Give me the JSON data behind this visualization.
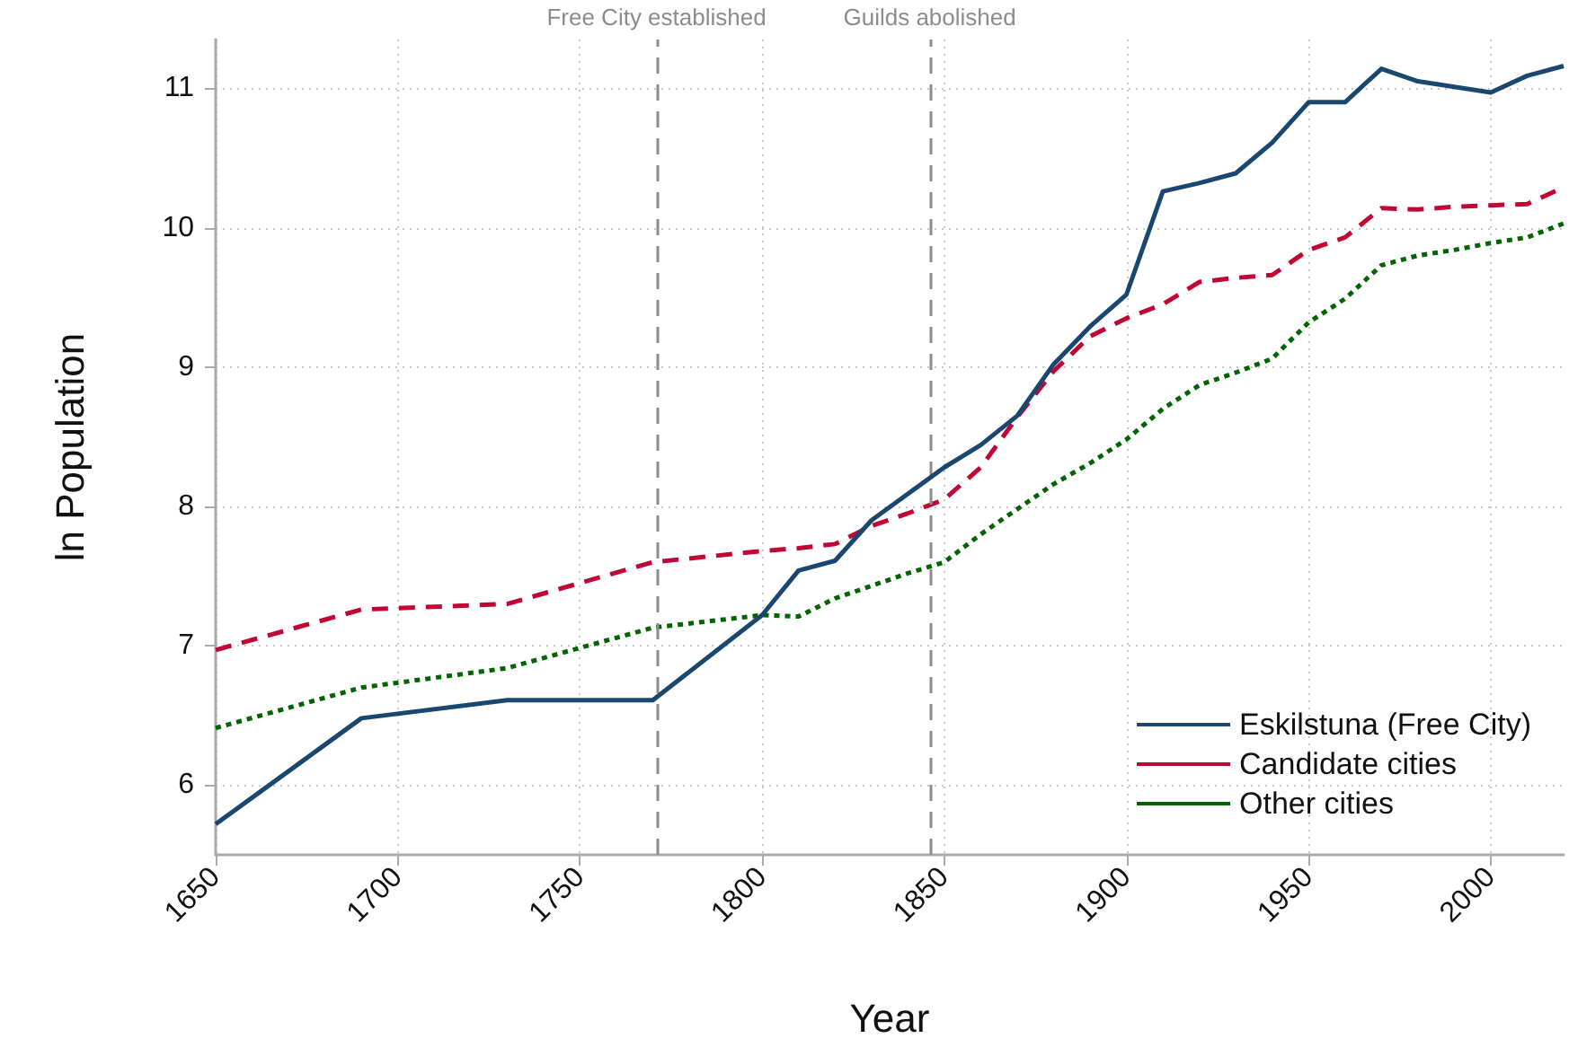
{
  "chart_data": {
    "type": "line",
    "xlabel": "Year",
    "ylabel": "ln Population",
    "xlim": [
      1650,
      2020
    ],
    "xticks": [
      1650,
      1700,
      1750,
      1800,
      1850,
      1900,
      1950,
      2000
    ],
    "ylim": [
      5.5,
      11.35
    ],
    "yticks": [
      6,
      7,
      8,
      9,
      10,
      11
    ],
    "grid": true,
    "legend": "bottom right",
    "x": [
      1650,
      1690,
      1730,
      1770,
      1800,
      1810,
      1820,
      1830,
      1840,
      1850,
      1860,
      1870,
      1880,
      1890,
      1900,
      1910,
      1920,
      1930,
      1940,
      1950,
      1960,
      1970,
      1980,
      1990,
      2000,
      2010,
      2020
    ],
    "series": [
      {
        "name": "Eskilstuna (Free City)",
        "color": "#1a476f",
        "line_style": "solid",
        "values": [
          5.72,
          6.48,
          6.61,
          6.61,
          7.22,
          7.54,
          7.61,
          7.9,
          8.09,
          8.28,
          8.44,
          8.65,
          9.02,
          9.29,
          9.52,
          10.26,
          10.32,
          10.39,
          10.61,
          10.9,
          10.9,
          11.14,
          11.05,
          11.01,
          10.97,
          11.09,
          11.16
        ]
      },
      {
        "name": "Candidate cities",
        "color": "#c10534",
        "line_style": "dashed",
        "values": [
          6.97,
          7.26,
          7.3,
          7.6,
          7.68,
          7.7,
          7.73,
          7.86,
          7.95,
          8.05,
          8.28,
          8.64,
          8.97,
          9.22,
          9.35,
          9.45,
          9.61,
          9.64,
          9.66,
          9.84,
          9.93,
          10.14,
          10.13,
          10.15,
          10.16,
          10.17,
          10.29
        ]
      },
      {
        "name": "Other cities",
        "color": "#006400",
        "line_style": "dotted",
        "values": [
          6.41,
          6.7,
          6.84,
          7.13,
          7.22,
          7.21,
          7.34,
          7.43,
          7.52,
          7.6,
          7.8,
          7.98,
          8.16,
          8.31,
          8.48,
          8.7,
          8.87,
          8.96,
          9.06,
          9.32,
          9.49,
          9.73,
          9.8,
          9.84,
          9.89,
          9.93,
          10.03
        ]
      }
    ],
    "ref_lines": [
      {
        "axis": "x",
        "value": 1771,
        "label": "Free City established",
        "color": "#8c8c8c",
        "line_style": "dashed"
      },
      {
        "axis": "x",
        "value": 1846,
        "label": "Guilds abolished",
        "color": "#8c8c8c",
        "line_style": "dashed"
      }
    ]
  }
}
